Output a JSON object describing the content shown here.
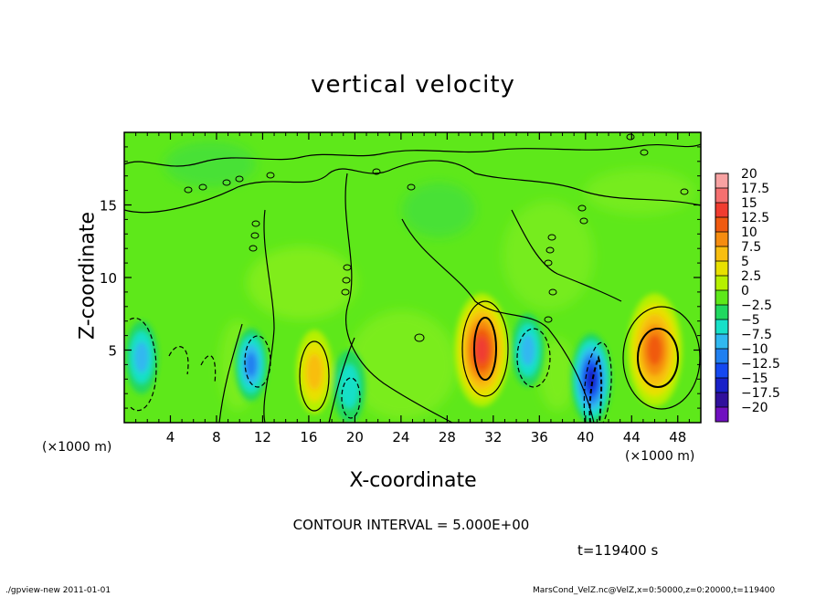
{
  "chart_data": {
    "type": "heatmap",
    "title": "vertical velocity",
    "xlabel": "X-coordinate",
    "ylabel": "Z-coordinate",
    "x_unit_label": "(×1000 m)",
    "x_ticks": [
      4,
      8,
      12,
      16,
      20,
      24,
      28,
      32,
      36,
      40,
      44,
      48
    ],
    "y_ticks": [
      5,
      10,
      15
    ],
    "xlim": [
      0,
      50
    ],
    "ylim": [
      0,
      20
    ],
    "grid": false,
    "colorbar": {
      "ticks": [
        "20",
        "17.5",
        "15",
        "12.5",
        "10",
        "7.5",
        "5",
        "2.5",
        "0",
        "−2.5",
        "−5",
        "−7.5",
        "−10",
        "−12.5",
        "−15",
        "−17.5",
        "−20"
      ],
      "colors": [
        "#f8a2a2",
        "#f57070",
        "#f03c30",
        "#f05a10",
        "#f58c10",
        "#f8be10",
        "#e8e000",
        "#b6f000",
        "#5ee81a",
        "#20d860",
        "#18e0c8",
        "#30b8f0",
        "#2080f0",
        "#1448f0",
        "#1820c8",
        "#30109c",
        "#7010c0"
      ]
    },
    "features": [
      {
        "x": 31,
        "z": 5,
        "value": 15,
        "kind": "updraft"
      },
      {
        "x": 46,
        "z": 5,
        "value": 12,
        "kind": "updraft"
      },
      {
        "x": 16.5,
        "z": 3.5,
        "value": 7.5,
        "kind": "updraft"
      },
      {
        "x": 40.5,
        "z": 3,
        "value": -15,
        "kind": "downdraft"
      },
      {
        "x": 35,
        "z": 5,
        "value": -7.5,
        "kind": "downdraft"
      },
      {
        "x": 11,
        "z": 4,
        "value": -10,
        "kind": "downdraft"
      },
      {
        "x": 1.5,
        "z": 4.5,
        "value": -7.5,
        "kind": "downdraft"
      },
      {
        "x": 19.5,
        "z": 2.5,
        "value": -5,
        "kind": "downdraft"
      }
    ]
  },
  "texts": {
    "contour_interval": "CONTOUR INTERVAL = 5.000E+00",
    "time_label": "t=119400  s",
    "footer_left": "./gpview-new   2011-01-01",
    "footer_right": "MarsCond_VelZ.nc@VelZ,x=0:50000,z=0:20000,t=119400"
  }
}
